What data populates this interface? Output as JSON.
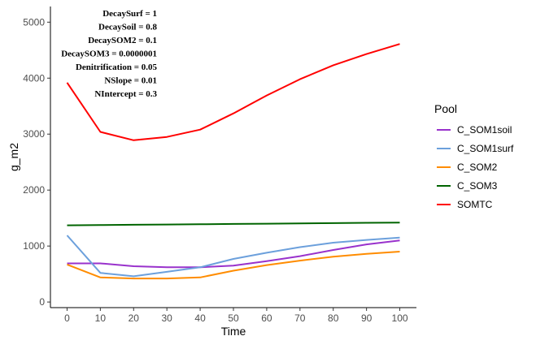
{
  "chart_data": {
    "type": "line",
    "xlabel": "Time",
    "ylabel": "g_m2",
    "xlim": [
      -5,
      105
    ],
    "ylim": [
      -100,
      5280
    ],
    "xticks": [
      0,
      10,
      20,
      30,
      40,
      50,
      60,
      70,
      80,
      90,
      100
    ],
    "yticks": [
      0,
      1000,
      2000,
      3000,
      4000,
      5000
    ],
    "grid": false,
    "x": [
      0,
      10,
      20,
      30,
      40,
      50,
      60,
      70,
      80,
      90,
      100
    ],
    "legend": {
      "title": "Pool",
      "position": "right"
    },
    "series": [
      {
        "name": "C_SOM1soil",
        "color": "#9932CC",
        "values": [
          690,
          690,
          640,
          620,
          620,
          650,
          730,
          820,
          930,
          1030,
          1100
        ]
      },
      {
        "name": "C_SOM1surf",
        "color": "#6CA0DC",
        "values": [
          1190,
          520,
          460,
          540,
          620,
          770,
          880,
          980,
          1060,
          1110,
          1150
        ]
      },
      {
        "name": "C_SOM2",
        "color": "#FF8C00",
        "values": [
          670,
          440,
          420,
          420,
          440,
          560,
          660,
          740,
          810,
          860,
          900
        ]
      },
      {
        "name": "C_SOM3",
        "color": "#006400",
        "values": [
          1370,
          1375,
          1380,
          1385,
          1390,
          1395,
          1400,
          1405,
          1410,
          1415,
          1420
        ]
      },
      {
        "name": "SOMTC",
        "color": "#FF0000",
        "values": [
          3920,
          3040,
          2890,
          2950,
          3080,
          3370,
          3690,
          3980,
          4230,
          4430,
          4610
        ]
      }
    ],
    "annotations": [
      "DecaySurf = 1",
      "DecaySoil = 0.8",
      "DecaySOM2 = 0.1",
      "DecaySOM3 = 0.0000001",
      "Denitrification = 0.05",
      "NSlope = 0.01",
      "NIntercept = 0.3"
    ]
  }
}
